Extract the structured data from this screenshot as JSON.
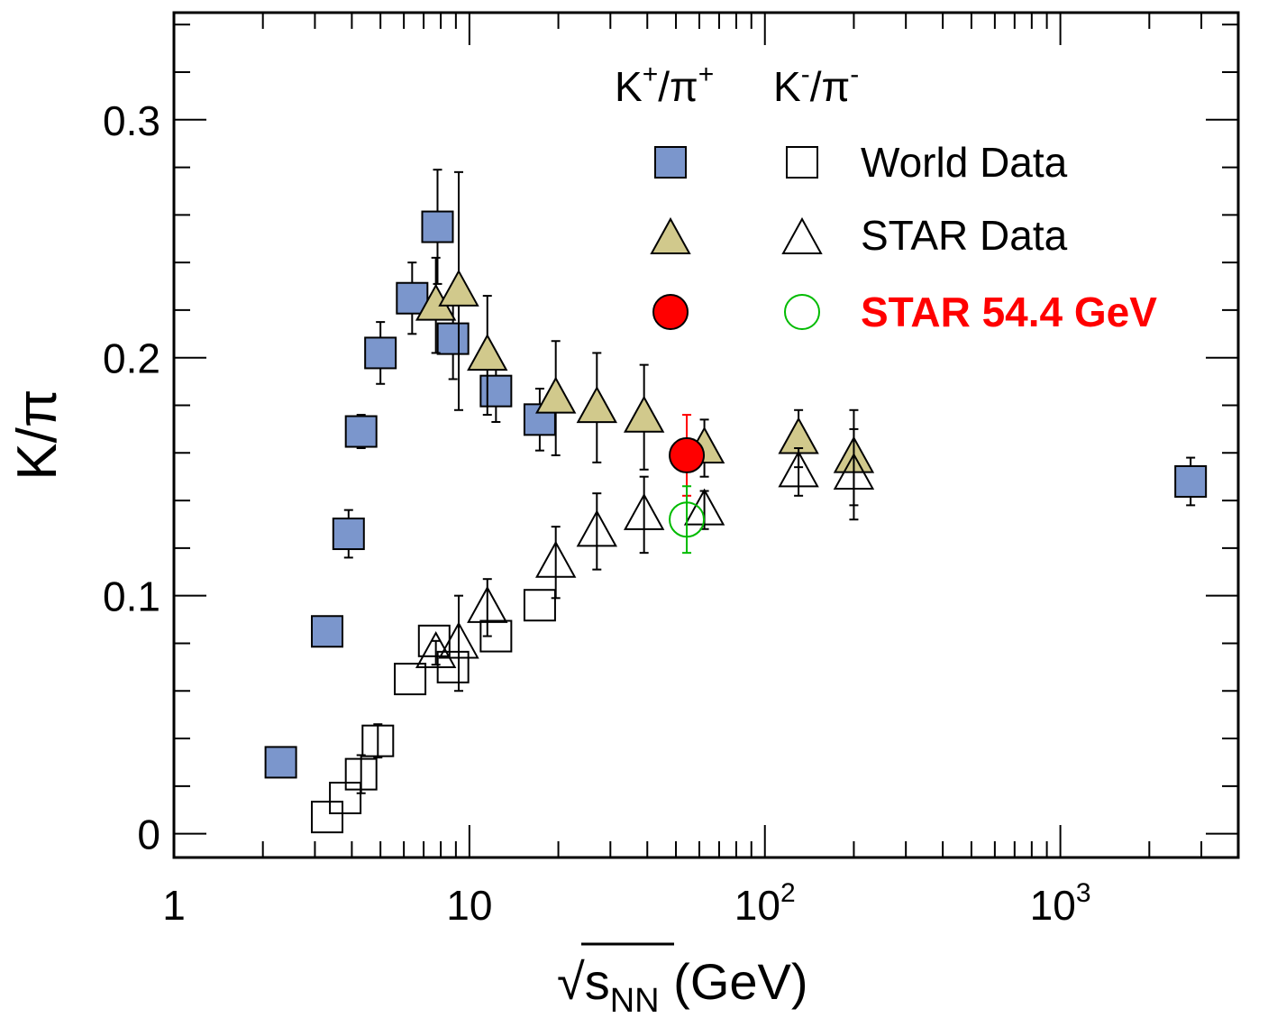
{
  "chart_data": {
    "type": "scatter",
    "title": "",
    "xlabel_prefix": "√",
    "xlabel_s": "s",
    "xlabel_sub": "NN",
    "xlabel_suffix": " (GeV)",
    "ylabel": "K/π",
    "x_scale": "log",
    "xlim": [
      1,
      4000
    ],
    "ylim": [
      -0.01,
      0.345
    ],
    "x_ticks": [
      {
        "value": 1,
        "base": "1",
        "exp": ""
      },
      {
        "value": 10,
        "base": "10",
        "exp": ""
      },
      {
        "value": 100,
        "base": "10",
        "exp": "2"
      },
      {
        "value": 1000,
        "base": "10",
        "exp": "3"
      }
    ],
    "y_ticks": [
      {
        "value": 0,
        "label": "0"
      },
      {
        "value": 0.1,
        "label": "0.1"
      },
      {
        "value": 0.2,
        "label": "0.2"
      },
      {
        "value": 0.3,
        "label": "0.3"
      }
    ],
    "grid": false,
    "legend": {
      "placement": "top-right",
      "header_plus": {
        "base": "K",
        "sup1": "+",
        "mid": "/π",
        "sup2": "+"
      },
      "header_minus": {
        "base": "K",
        "sup1": "-",
        "mid": "/π",
        "sup2": "-"
      },
      "entries": [
        {
          "label": "World Data",
          "marker": "square",
          "color": "#000000"
        },
        {
          "label": "STAR Data",
          "marker": "triangle",
          "color": "#000000"
        },
        {
          "label": "STAR 54.4 GeV",
          "marker": "circle",
          "color": "#ff0000"
        }
      ]
    },
    "series": [
      {
        "marker": "square",
        "fill": "#7b96cc",
        "stroke": "#000000",
        "points": [
          {
            "x": 2.3,
            "y": 0.03,
            "err": 0
          },
          {
            "x": 3.3,
            "y": 0.085,
            "err": 0
          },
          {
            "x": 3.9,
            "y": 0.126,
            "err": 0.01
          },
          {
            "x": 4.3,
            "y": 0.169,
            "err": 0.007
          },
          {
            "x": 5.0,
            "y": 0.202,
            "err": 0.013
          },
          {
            "x": 6.4,
            "y": 0.225,
            "err": 0.015
          },
          {
            "x": 7.8,
            "y": 0.255,
            "err": 0.024
          },
          {
            "x": 8.8,
            "y": 0.208,
            "err": 0.017
          },
          {
            "x": 12.3,
            "y": 0.186,
            "err": 0.013
          },
          {
            "x": 17.3,
            "y": 0.174,
            "err": 0.013
          },
          {
            "x": 2760,
            "y": 0.148,
            "err": 0.01
          }
        ]
      },
      {
        "marker": "square",
        "fill": "none",
        "stroke": "#000000",
        "points": [
          {
            "x": 3.3,
            "y": 0.007,
            "err": 0
          },
          {
            "x": 3.8,
            "y": 0.015,
            "err": 0
          },
          {
            "x": 4.3,
            "y": 0.025,
            "err": 0.008
          },
          {
            "x": 4.9,
            "y": 0.039,
            "err": 0.007
          },
          {
            "x": 6.3,
            "y": 0.065,
            "err": 0
          },
          {
            "x": 7.6,
            "y": 0.081,
            "err": 0
          },
          {
            "x": 8.8,
            "y": 0.07,
            "err": 0
          },
          {
            "x": 12.3,
            "y": 0.083,
            "err": 0
          },
          {
            "x": 17.3,
            "y": 0.096,
            "err": 0
          }
        ]
      },
      {
        "marker": "triangle",
        "fill": "#d1c98c",
        "stroke": "#000000",
        "points": [
          {
            "x": 7.7,
            "y": 0.222,
            "err": 0.02
          },
          {
            "x": 9.2,
            "y": 0.228,
            "err": 0.05
          },
          {
            "x": 11.5,
            "y": 0.201,
            "err": 0.025
          },
          {
            "x": 19.6,
            "y": 0.183,
            "err": 0.024
          },
          {
            "x": 27,
            "y": 0.179,
            "err": 0.023
          },
          {
            "x": 39,
            "y": 0.175,
            "err": 0.022
          },
          {
            "x": 62.4,
            "y": 0.162,
            "err": 0.012
          },
          {
            "x": 130,
            "y": 0.166,
            "err": 0.012
          },
          {
            "x": 200,
            "y": 0.158,
            "err": 0.02
          }
        ]
      },
      {
        "marker": "triangle",
        "fill": "none",
        "stroke": "#000000",
        "points": [
          {
            "x": 7.7,
            "y": 0.076,
            "err": 0.005
          },
          {
            "x": 9.2,
            "y": 0.08,
            "err": 0.02
          },
          {
            "x": 11.5,
            "y": 0.095,
            "err": 0.012
          },
          {
            "x": 19.6,
            "y": 0.114,
            "err": 0.015
          },
          {
            "x": 27,
            "y": 0.127,
            "err": 0.016
          },
          {
            "x": 39,
            "y": 0.134,
            "err": 0.016
          },
          {
            "x": 62.4,
            "y": 0.136,
            "err": 0.008
          },
          {
            "x": 130,
            "y": 0.152,
            "err": 0.01
          },
          {
            "x": 200,
            "y": 0.151,
            "err": 0.019
          }
        ]
      },
      {
        "marker": "circle",
        "fill": "#ff0000",
        "stroke": "#000000",
        "errcolor": "#ff0000",
        "points": [
          {
            "x": 54.4,
            "y": 0.159,
            "err": 0.017
          }
        ]
      },
      {
        "marker": "circle",
        "fill": "none",
        "stroke": "#00bb00",
        "errcolor": "#00bb00",
        "points": [
          {
            "x": 54.4,
            "y": 0.132,
            "err": 0.014
          }
        ]
      }
    ]
  }
}
